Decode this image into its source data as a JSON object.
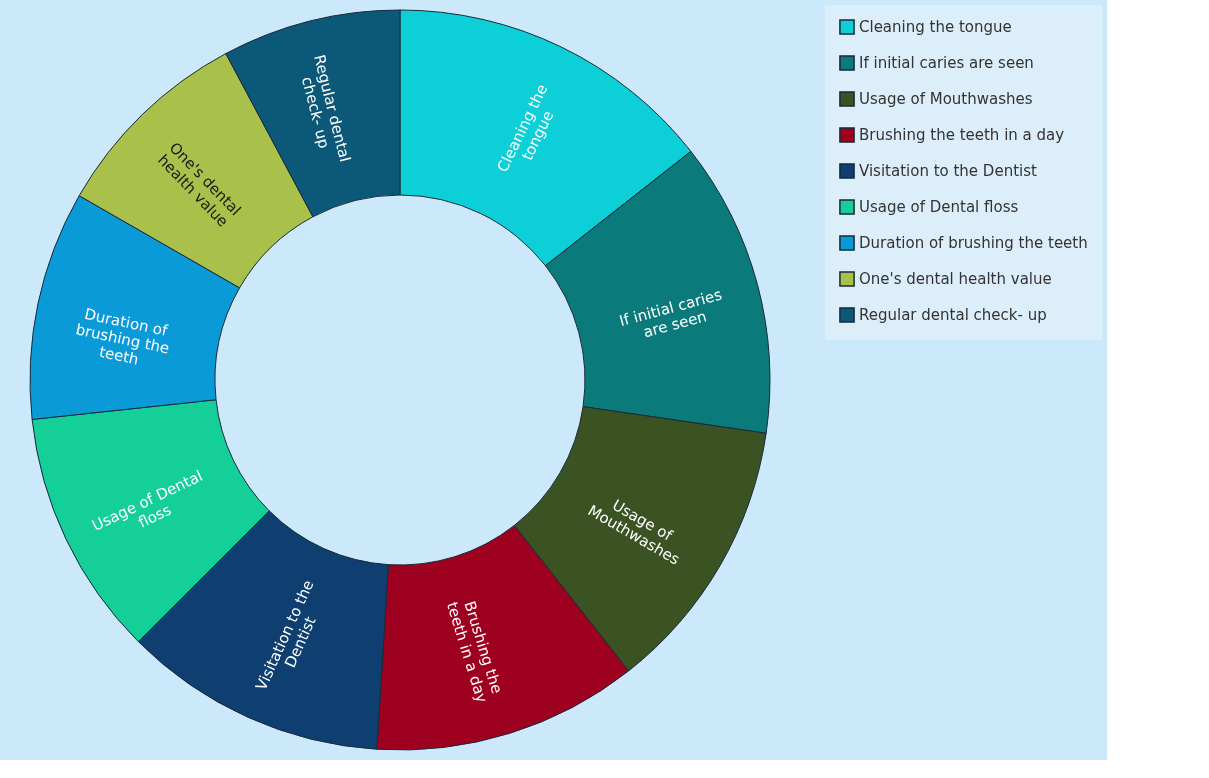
{
  "chart_data": {
    "type": "donut",
    "categories": [
      "Cleaning the tongue",
      "If initial caries are seen",
      "Usage of Mouthwashes",
      "Brushing the teeth in a day",
      "Visitation to the Dentist",
      "Usage of Dental floss",
      "Duration of brushing the teeth",
      "One's dental health value",
      "Regular dental check- up"
    ],
    "values": [
      14.4,
      12.9,
      12.1,
      11.6,
      11.5,
      10.8,
      10.0,
      8.9,
      7.8
    ],
    "colors": [
      "#0ccfd8",
      "#0b7a7a",
      "#3b5323",
      "#9e0020",
      "#0f3f70",
      "#14cf98",
      "#0b9ad8",
      "#a9c04a",
      "#0b5878"
    ],
    "legend": "right"
  }
}
